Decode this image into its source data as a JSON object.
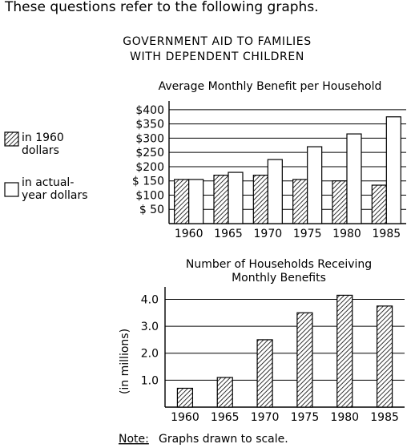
{
  "intro_text": "These questions refer to the following graphs.",
  "figure_title": [
    "GOVERNMENT AID TO FAMILIES",
    "WITH DEPENDENT CHILDREN"
  ],
  "legend": [
    {
      "key": "dollars_1960",
      "lines": [
        "in 1960",
        "dollars"
      ],
      "pattern": "hatched"
    },
    {
      "key": "actual_year",
      "lines": [
        "in actual-",
        "year dollars"
      ],
      "pattern": "white"
    }
  ],
  "note": {
    "label": "Note:",
    "text": "Graphs drawn to scale."
  },
  "colors": {
    "ink": "#000000",
    "background": "#ffffff"
  },
  "chart_data": [
    {
      "type": "bar",
      "title": "Average Monthly Benefit per Household",
      "categories": [
        "1960",
        "1965",
        "1970",
        "1975",
        "1980",
        "1985"
      ],
      "y_tick_labels": [
        "$400",
        "$350",
        "$300",
        "$250",
        "$200",
        "$ 150",
        "$100",
        "$ 50"
      ],
      "y_tick_values": [
        400,
        350,
        300,
        250,
        200,
        150,
        100,
        50
      ],
      "ylim": [
        0,
        425
      ],
      "grid": "horizontal",
      "series": [
        {
          "name": "in 1960 dollars",
          "pattern": "hatched",
          "values": [
            155,
            170,
            170,
            155,
            150,
            135
          ]
        },
        {
          "name": "in actual-year dollars",
          "pattern": "white",
          "values": [
            155,
            180,
            225,
            270,
            315,
            375
          ]
        }
      ]
    },
    {
      "type": "bar",
      "title": "Number of Households Receiving Monthly Benefits",
      "title_lines": [
        "Number of Households Receiving",
        "Monthly Benefits"
      ],
      "ylabel": "(in millions)",
      "categories": [
        "1960",
        "1965",
        "1970",
        "1975",
        "1980",
        "1985"
      ],
      "y_tick_labels": [
        "4.0",
        "3.0",
        "2.0",
        "1.0"
      ],
      "y_tick_values": [
        4.0,
        3.0,
        2.0,
        1.0
      ],
      "ylim": [
        0,
        4.4
      ],
      "grid": "horizontal",
      "series": [
        {
          "pattern": "hatched",
          "values": [
            0.7,
            1.1,
            2.5,
            3.5,
            4.15,
            3.75
          ]
        }
      ]
    }
  ]
}
